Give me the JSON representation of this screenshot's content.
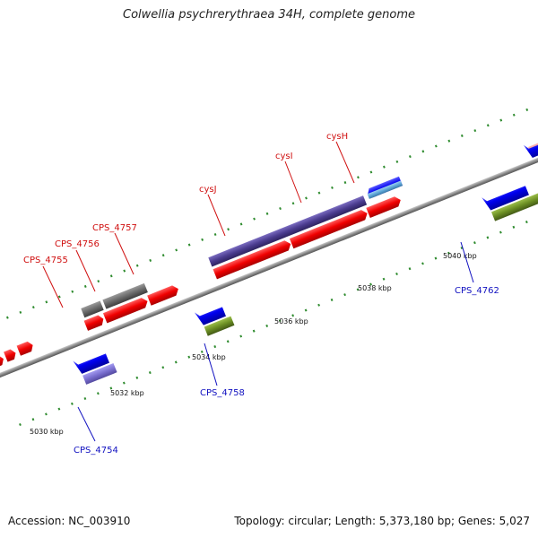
{
  "title": "Colwellia psychrerythraea 34H, complete genome",
  "footer": {
    "accession": "Accession: NC_003910",
    "summary": "Topology: circular; Length: 5,373,180 bp; Genes: 5,027"
  },
  "colors": {
    "forward_cds": "#ff1a1a",
    "reverse_cds": "#1a1aff",
    "operon_bar": "#4b3c8f",
    "grey_gene": "#6e6e6e",
    "rna_green": "#6b8e23",
    "pink_gene": "#f08c8c",
    "light_blue_gene": "#5ea7d8",
    "lavender_gene": "#7a6fd0",
    "tick_green": "#2e8b2e",
    "label_red": "#d01010",
    "label_blue": "#1010c0",
    "backbone": "#8a8a8a"
  },
  "scale_labels": [
    "5030 kbp",
    "5032 kbp",
    "5034 kbp",
    "5036 kbp",
    "5038 kbp",
    "5040 kbp"
  ],
  "gene_labels": [
    {
      "id": "CPS_4754",
      "strand": "reverse"
    },
    {
      "id": "CPS_4755",
      "strand": "forward"
    },
    {
      "id": "CPS_4756",
      "strand": "forward"
    },
    {
      "id": "CPS_4757",
      "strand": "forward"
    },
    {
      "id": "cysJ",
      "strand": "forward"
    },
    {
      "id": "cysI",
      "strand": "forward"
    },
    {
      "id": "cysH",
      "strand": "forward"
    },
    {
      "id": "CPS_4758",
      "strand": "reverse"
    },
    {
      "id": "CPS_4762",
      "strand": "reverse"
    }
  ]
}
